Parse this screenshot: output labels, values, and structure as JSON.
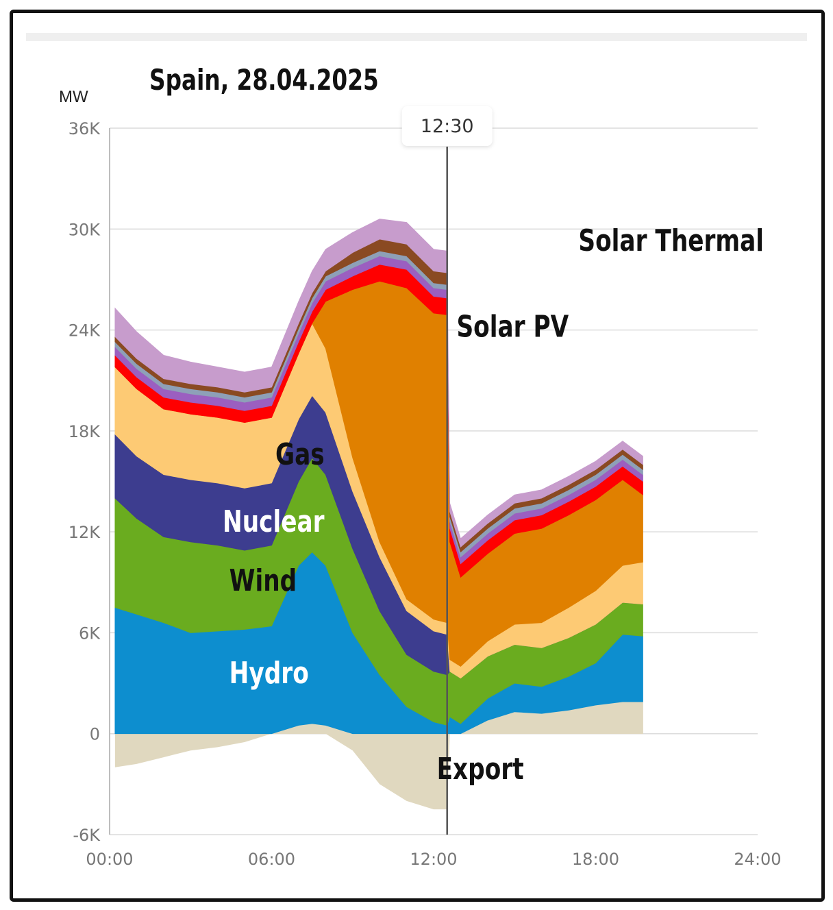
{
  "chart_data": {
    "type": "area",
    "title": "Spain, 28.04.2025",
    "ylabel": "MW",
    "xlabel": "",
    "x_ticks": [
      "00:00",
      "06:00",
      "12:00",
      "18:00",
      "24:00"
    ],
    "y_ticks": [
      "36K",
      "30K",
      "24K",
      "18K",
      "12K",
      "6K",
      "0",
      "-6K"
    ],
    "xlim": [
      0,
      24
    ],
    "ylim": [
      -6000,
      36000
    ],
    "grid": true,
    "cursor": {
      "x": 12.5,
      "label": "12:30"
    },
    "x": [
      0,
      1,
      2,
      3,
      4,
      5,
      6,
      7,
      7.5,
      8,
      9,
      10,
      11,
      12,
      12.5,
      12.6,
      13,
      14,
      15,
      16,
      17,
      18,
      19,
      19.75
    ],
    "series": [
      {
        "name": "Export",
        "color": "#e0d8bf",
        "values": [
          -2000,
          -1800,
          -1400,
          -1000,
          -800,
          -500,
          0,
          500,
          600,
          500,
          -1000,
          -3000,
          -4000,
          -4500,
          -4500,
          0,
          0,
          800,
          1300,
          1200,
          1400,
          1700,
          1900,
          1900
        ]
      },
      {
        "name": "Hydro",
        "color": "#0d8ecf",
        "values": [
          7500,
          7100,
          6600,
          6000,
          6100,
          6200,
          6400,
          9500,
          10200,
          9500,
          6000,
          3500,
          1600,
          700,
          500,
          1000,
          600,
          1300,
          1700,
          1600,
          2000,
          2500,
          4000,
          3900
        ]
      },
      {
        "name": "Wind",
        "color": "#6aac1f",
        "values": [
          6500,
          5700,
          5100,
          5400,
          5100,
          4700,
          4800,
          5000,
          5600,
          5400,
          5000,
          3800,
          3100,
          3000,
          3000,
          2700,
          2700,
          2500,
          2300,
          2300,
          2300,
          2300,
          1900,
          1900
        ]
      },
      {
        "name": "Nuclear",
        "color": "#3d3d8f",
        "values": [
          3800,
          3700,
          3700,
          3700,
          3700,
          3700,
          3700,
          3700,
          3700,
          3700,
          3400,
          3200,
          2600,
          2400,
          2400,
          0,
          0,
          0,
          0,
          0,
          0,
          0,
          0,
          0
        ]
      },
      {
        "name": "Gas",
        "color": "#fdca74",
        "values": [
          4000,
          4000,
          3900,
          3900,
          3900,
          3900,
          3900,
          3900,
          4300,
          3800,
          2000,
          900,
          700,
          700,
          700,
          700,
          700,
          900,
          1200,
          1500,
          1800,
          2000,
          2200,
          2500
        ]
      },
      {
        "name": "Solar PV",
        "color": "#e08000",
        "values": [
          0,
          0,
          0,
          0,
          0,
          0,
          0,
          0,
          0,
          2800,
          10000,
          15500,
          18500,
          18200,
          18300,
          7000,
          5300,
          5200,
          5400,
          5600,
          5500,
          5400,
          5100,
          4000
        ]
      },
      {
        "name": "",
        "color": "#ff0000",
        "values": [
          700,
          700,
          700,
          700,
          700,
          700,
          700,
          700,
          700,
          700,
          800,
          1000,
          1100,
          1000,
          1000,
          800,
          800,
          800,
          800,
          800,
          800,
          800,
          800,
          800
        ]
      },
      {
        "name": "",
        "color": "#9b5fc0",
        "values": [
          500,
          500,
          500,
          500,
          500,
          500,
          500,
          500,
          500,
          500,
          500,
          500,
          500,
          500,
          500,
          400,
          400,
          400,
          400,
          400,
          400,
          400,
          400,
          400
        ]
      },
      {
        "name": "",
        "color": "#8ea0b8",
        "values": [
          300,
          300,
          300,
          300,
          300,
          300,
          300,
          300,
          300,
          300,
          300,
          300,
          300,
          300,
          300,
          300,
          300,
          300,
          300,
          300,
          300,
          300,
          300,
          300
        ]
      },
      {
        "name": "Solar Thermal",
        "color": "#8a4a22",
        "values": [
          300,
          300,
          300,
          300,
          300,
          300,
          300,
          300,
          300,
          300,
          600,
          700,
          700,
          700,
          700,
          300,
          300,
          300,
          300,
          300,
          300,
          300,
          300,
          300
        ]
      },
      {
        "name": "",
        "color": "#c79ccc",
        "values": [
          1700,
          1600,
          1400,
          1300,
          1200,
          1200,
          1200,
          1300,
          1300,
          1300,
          1200,
          1200,
          1300,
          1300,
          1300,
          500,
          500,
          500,
          500,
          500,
          500,
          500,
          500,
          500
        ]
      }
    ],
    "annotations": [
      {
        "text": "Solar Thermal",
        "x": 13.5,
        "y": 28700,
        "color": "#111111",
        "size": 44
      },
      {
        "text": "Solar PV",
        "x": 9.8,
        "y": 23600,
        "color": "#111111",
        "size": 44
      },
      {
        "text": "Gas",
        "x": 4.3,
        "y": 16000,
        "color": "#111111",
        "size": 44
      },
      {
        "text": "Nuclear",
        "x": 2.7,
        "y": 12000,
        "color": "#ffffff",
        "size": 44
      },
      {
        "text": "Wind",
        "x": 2.9,
        "y": 8500,
        "color": "#111111",
        "size": 44
      },
      {
        "text": "Hydro",
        "x": 2.9,
        "y": 3000,
        "color": "#ffffff",
        "size": 44
      },
      {
        "text": "Export",
        "x": 9.2,
        "y": -2700,
        "color": "#111111",
        "size": 44
      }
    ]
  }
}
